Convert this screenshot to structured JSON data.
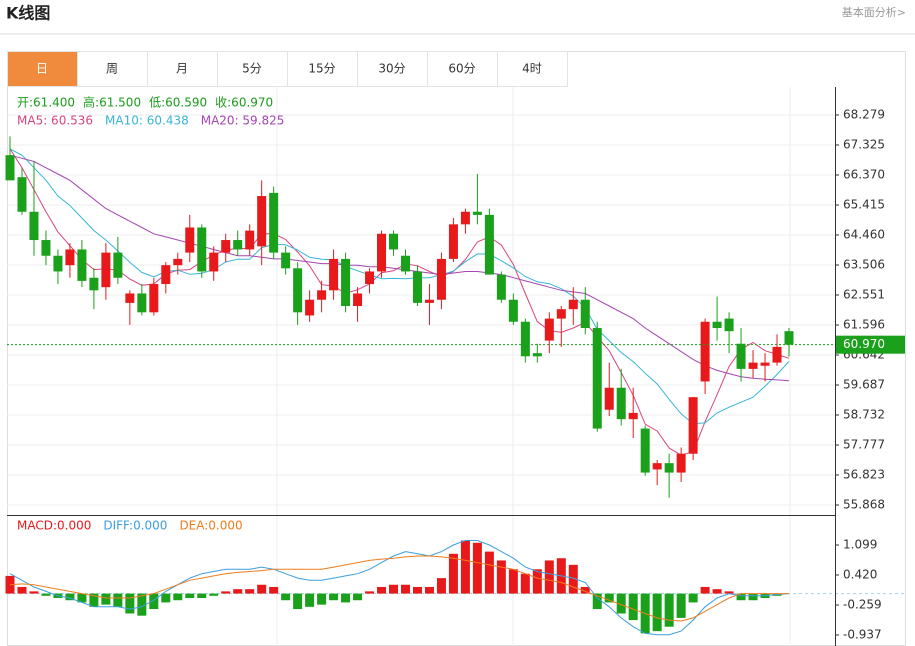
{
  "header": {
    "title": "K线图",
    "link": "基本面分析>"
  },
  "tabs": [
    "日",
    "周",
    "月",
    "5分",
    "15分",
    "30分",
    "60分",
    "4时"
  ],
  "selected_tab": 0,
  "chart_data": [
    {
      "type": "candlestick",
      "info": [
        "开:61.400",
        "高:61.500",
        "低:60.590",
        "收:60.970"
      ],
      "info_color": "#1a9c1a",
      "up_color": "#e8191b",
      "down_color": "#1aa01a",
      "open": [
        67.0,
        66.3,
        65.2,
        64.3,
        63.8,
        63.5,
        64.0,
        63.1,
        62.8,
        63.9,
        62.3,
        62.6,
        62.0,
        62.9,
        63.5,
        63.9,
        64.7,
        63.3,
        63.9,
        64.3,
        64.0,
        64.1,
        65.8,
        63.9,
        63.4,
        61.9,
        62.4,
        62.7,
        63.7,
        62.2,
        62.9,
        63.3,
        64.5,
        63.8,
        63.3,
        62.3,
        62.4,
        63.7,
        64.8,
        65.2,
        65.1,
        63.2,
        62.4,
        61.7,
        60.7,
        61.1,
        61.8,
        62.1,
        62.4,
        61.5,
        58.9,
        59.6,
        58.6,
        58.3,
        57.0,
        57.2,
        56.9,
        57.5,
        59.8,
        61.7,
        61.8,
        61.0,
        60.2,
        60.3,
        60.4,
        61.4
      ],
      "high": [
        67.6,
        66.6,
        66.8,
        64.6,
        64.0,
        64.2,
        64.3,
        63.4,
        64.2,
        64.4,
        62.7,
        62.9,
        63.1,
        63.6,
        63.9,
        65.1,
        64.8,
        64.1,
        64.5,
        64.6,
        64.8,
        66.2,
        66.0,
        64.1,
        63.6,
        62.7,
        63.0,
        64.0,
        63.9,
        62.8,
        63.4,
        64.6,
        64.6,
        64.0,
        63.5,
        62.9,
        63.9,
        65.0,
        65.3,
        66.4,
        65.3,
        63.3,
        62.6,
        61.8,
        61.0,
        62.0,
        62.2,
        62.8,
        62.8,
        61.7,
        60.4,
        60.2,
        59.6,
        58.4,
        57.3,
        57.5,
        57.7,
        59.3,
        61.8,
        62.5,
        62.0,
        61.5,
        60.8,
        60.7,
        61.3,
        61.5
      ],
      "low": [
        66.2,
        65.1,
        63.8,
        63.5,
        62.9,
        63.1,
        62.8,
        62.1,
        62.4,
        62.9,
        61.6,
        61.9,
        61.9,
        62.6,
        63.2,
        63.6,
        63.1,
        63.0,
        63.6,
        63.8,
        63.8,
        63.5,
        63.7,
        63.2,
        61.6,
        61.7,
        62.0,
        62.4,
        62.0,
        61.7,
        62.6,
        63.1,
        63.8,
        63.2,
        62.2,
        61.6,
        62.1,
        63.6,
        64.5,
        64.8,
        63.2,
        62.3,
        61.6,
        60.4,
        60.4,
        60.7,
        60.9,
        61.6,
        61.3,
        58.2,
        58.7,
        58.4,
        58.0,
        56.8,
        56.5,
        56.1,
        56.6,
        57.3,
        59.4,
        61.1,
        60.7,
        59.8,
        59.9,
        59.8,
        60.3,
        60.59
      ],
      "close": [
        66.2,
        65.2,
        64.3,
        63.8,
        63.3,
        64.0,
        63.0,
        62.7,
        63.9,
        63.1,
        62.6,
        62.0,
        62.9,
        63.5,
        63.7,
        64.7,
        63.3,
        63.9,
        64.3,
        64.0,
        64.6,
        65.7,
        63.9,
        63.4,
        62.0,
        62.4,
        62.7,
        63.7,
        62.2,
        62.6,
        63.3,
        64.5,
        64.0,
        63.3,
        62.3,
        62.4,
        63.7,
        64.8,
        65.2,
        65.1,
        63.2,
        62.4,
        61.7,
        60.6,
        60.6,
        61.8,
        62.1,
        62.4,
        61.5,
        58.3,
        59.6,
        58.6,
        58.8,
        56.9,
        57.2,
        56.9,
        57.5,
        59.3,
        61.7,
        61.5,
        61.4,
        60.2,
        60.4,
        60.4,
        60.9,
        60.97
      ],
      "series": [
        {
          "name": "MA5: 60.536",
          "color": "#d9467f",
          "values": [
            67.2,
            66.6,
            65.9,
            65.2,
            64.56,
            64.12,
            63.68,
            63.36,
            63.38,
            63.34,
            63.06,
            62.86,
            62.9,
            63.22,
            63.34,
            63.36,
            63.62,
            63.82,
            63.98,
            64.04,
            64.02,
            64.5,
            64.5,
            64.32,
            63.92,
            63.48,
            62.88,
            62.84,
            62.6,
            62.72,
            62.9,
            63.26,
            63.32,
            63.54,
            63.48,
            63.3,
            63.14,
            63.3,
            63.68,
            64.24,
            64.4,
            64.14,
            63.52,
            62.6,
            61.7,
            61.42,
            61.36,
            61.5,
            61.68,
            61.22,
            60.78,
            60.08,
            59.36,
            58.44,
            58.22,
            57.68,
            57.46,
            57.56,
            58.52,
            59.38,
            60.28,
            60.82,
            61.04,
            60.78,
            60.66,
            60.536
          ]
        },
        {
          "name": "MA10: 60.438",
          "color": "#38b6d6",
          "values": [
            67.2,
            67.0,
            66.6,
            66.2,
            65.7,
            65.4,
            65.0,
            64.6,
            64.3,
            63.95,
            63.59,
            63.27,
            63.13,
            63.3,
            63.34,
            63.21,
            63.24,
            63.36,
            63.6,
            63.69,
            63.69,
            64.06,
            64.16,
            64.15,
            63.98,
            63.75,
            63.69,
            63.67,
            63.46,
            63.32,
            63.19,
            63.07,
            63.08,
            63.07,
            63.1,
            63.1,
            63.2,
            63.31,
            63.61,
            63.86,
            63.85,
            63.64,
            63.41,
            63.14,
            62.97,
            62.91,
            62.75,
            62.51,
            62.14,
            61.46,
            61.1,
            60.72,
            60.43,
            60.06,
            59.72,
            59.23,
            58.77,
            58.46,
            58.48,
            58.8,
            58.98,
            59.14,
            59.3,
            59.65,
            60.02,
            60.438
          ]
        },
        {
          "name": "MA20: 59.825",
          "color": "#a445b2",
          "values": [
            67.0,
            66.9,
            66.8,
            66.6,
            66.4,
            66.2,
            65.9,
            65.6,
            65.3,
            65.1,
            64.9,
            64.7,
            64.5,
            64.4,
            64.3,
            64.2,
            64.1,
            64.0,
            63.9,
            63.8,
            63.8,
            63.75,
            63.7,
            63.7,
            63.65,
            63.6,
            63.55,
            63.55,
            63.5,
            63.5,
            63.45,
            63.45,
            63.4,
            63.35,
            63.3,
            63.25,
            63.2,
            63.25,
            63.3,
            63.3,
            63.25,
            63.2,
            63.1,
            63.0,
            62.9,
            62.8,
            62.7,
            62.65,
            62.6,
            62.4,
            62.2,
            62.0,
            61.8,
            61.5,
            61.25,
            61.0,
            60.75,
            60.5,
            60.3,
            60.15,
            60.05,
            59.95,
            59.9,
            59.87,
            59.85,
            59.825
          ]
        }
      ],
      "ylim": [
        55.55,
        69.17
      ],
      "yticks": [
        68.279,
        67.325,
        {
          "value": 66.37,
          "label": "66.370"
        },
        65.415,
        {
          "value": 64.46,
          "label": "64.460"
        },
        63.506,
        62.551,
        61.596,
        60.642,
        59.687,
        58.732,
        57.777,
        56.823,
        55.868
      ],
      "last_price": {
        "value": 60.97,
        "label": "60.970"
      },
      "last_price_color": "#1aa01a",
      "grid": true
    },
    {
      "type": "macd",
      "up_color": "#e8191b",
      "down_color": "#1aa01a",
      "histogram": {
        "name": "MACD:0.000",
        "color": "#e8191b",
        "values": [
          0.4,
          0.15,
          0.05,
          -0.05,
          -0.1,
          -0.15,
          -0.2,
          -0.3,
          -0.25,
          -0.3,
          -0.45,
          -0.5,
          -0.35,
          -0.2,
          -0.15,
          -0.1,
          -0.1,
          -0.05,
          0.05,
          0.1,
          0.1,
          0.2,
          0.15,
          -0.15,
          -0.35,
          -0.3,
          -0.25,
          -0.15,
          -0.2,
          -0.15,
          0.05,
          0.15,
          0.2,
          0.2,
          0.15,
          0.15,
          0.35,
          0.9,
          1.2,
          1.15,
          0.95,
          0.75,
          0.55,
          0.45,
          0.55,
          0.75,
          0.8,
          0.65,
          0.15,
          -0.35,
          -0.2,
          -0.45,
          -0.6,
          -0.9,
          -0.85,
          -0.75,
          -0.55,
          -0.2,
          0.15,
          0.1,
          0.05,
          -0.15,
          -0.15,
          -0.1,
          -0.05,
          0.0
        ]
      },
      "series": [
        {
          "name": "DIFF:0.000",
          "color": "#3c9ee0",
          "values": [
            0.45,
            0.3,
            0.15,
            0.05,
            -0.05,
            -0.1,
            -0.2,
            -0.3,
            -0.3,
            -0.3,
            -0.35,
            -0.3,
            -0.15,
            0.05,
            0.2,
            0.35,
            0.45,
            0.5,
            0.55,
            0.55,
            0.55,
            0.6,
            0.55,
            0.45,
            0.35,
            0.3,
            0.3,
            0.35,
            0.4,
            0.45,
            0.55,
            0.7,
            0.85,
            0.95,
            0.9,
            0.85,
            0.95,
            1.1,
            1.2,
            1.2,
            1.1,
            0.95,
            0.8,
            0.6,
            0.5,
            0.45,
            0.4,
            0.35,
            0.25,
            -0.1,
            -0.3,
            -0.55,
            -0.75,
            -0.9,
            -0.93,
            -0.93,
            -0.85,
            -0.6,
            -0.3,
            -0.1,
            0,
            -0.05,
            -0.05,
            -0.05,
            -0.02,
            0
          ]
        },
        {
          "name": "DEA:0.000",
          "color": "#ee7d1e",
          "values": [
            0.2,
            0.22,
            0.2,
            0.15,
            0.1,
            0.05,
            0,
            -0.05,
            -0.1,
            -0.1,
            -0.1,
            -0.05,
            0,
            0.1,
            0.2,
            0.3,
            0.35,
            0.4,
            0.45,
            0.48,
            0.5,
            0.52,
            0.55,
            0.55,
            0.55,
            0.55,
            0.55,
            0.6,
            0.65,
            0.7,
            0.75,
            0.78,
            0.8,
            0.83,
            0.85,
            0.85,
            0.83,
            0.8,
            0.75,
            0.7,
            0.65,
            0.6,
            0.55,
            0.45,
            0.35,
            0.3,
            0.25,
            0.15,
            0.05,
            -0.05,
            -0.15,
            -0.25,
            -0.35,
            -0.45,
            -0.55,
            -0.6,
            -0.62,
            -0.55,
            -0.4,
            -0.25,
            -0.1,
            0,
            0,
            0,
            0,
            0
          ]
        }
      ],
      "ylim": [
        -1.186,
        1.778
      ],
      "yticks": [
        1.099,
        {
          "value": 0.42,
          "label": "0.420"
        },
        -0.259,
        -0.937
      ],
      "grid": false
    }
  ]
}
